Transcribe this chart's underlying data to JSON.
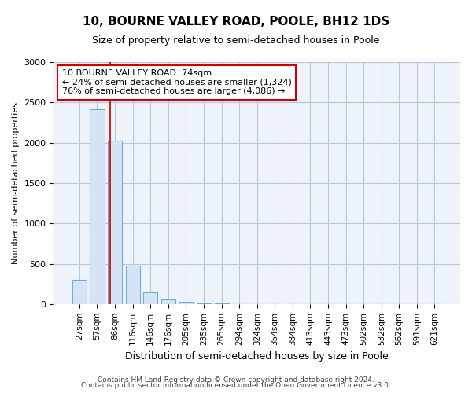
{
  "title1": "10, BOURNE VALLEY ROAD, POOLE, BH12 1DS",
  "title2": "Size of property relative to semi-detached houses in Poole",
  "xlabel": "Distribution of semi-detached houses by size in Poole",
  "ylabel": "Number of semi-detached properties",
  "categories": [
    "27sqm",
    "57sqm",
    "86sqm",
    "116sqm",
    "146sqm",
    "176sqm",
    "205sqm",
    "235sqm",
    "265sqm",
    "294sqm",
    "324sqm",
    "354sqm",
    "384sqm",
    "413sqm",
    "443sqm",
    "473sqm",
    "502sqm",
    "532sqm",
    "562sqm",
    "591sqm",
    "621sqm"
  ],
  "values": [
    300,
    2420,
    2030,
    480,
    145,
    60,
    25,
    10,
    5,
    0,
    0,
    0,
    0,
    0,
    0,
    0,
    0,
    0,
    0,
    0,
    0
  ],
  "bar_color": "#d6e4f5",
  "bar_edge_color": "#6baed6",
  "vline_x": 1.72,
  "vline_color": "#cc0000",
  "annotation_text": "10 BOURNE VALLEY ROAD: 74sqm\n← 24% of semi-detached houses are smaller (1,324)\n76% of semi-detached houses are larger (4,086) →",
  "annotation_box_color": "#cc0000",
  "ylim": [
    0,
    3000
  ],
  "yticks": [
    0,
    500,
    1000,
    1500,
    2000,
    2500,
    3000
  ],
  "footer1": "Contains HM Land Registry data © Crown copyright and database right 2024.",
  "footer2": "Contains public sector information licensed under the Open Government Licence v3.0.",
  "bg_color": "#ffffff",
  "plot_bg_color": "#eef3fa",
  "grid_color": "#b8c8dc"
}
